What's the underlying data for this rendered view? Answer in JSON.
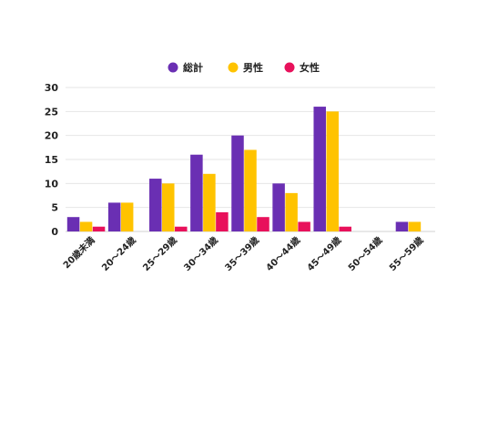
{
  "chart_data": {
    "type": "bar",
    "title": "",
    "xlabel": "",
    "ylabel": "",
    "ylim": [
      0,
      30
    ],
    "yticks": [
      0,
      5,
      10,
      15,
      20,
      25,
      30
    ],
    "grid": true,
    "legend_position": "top-center",
    "categories": [
      "20歳未満",
      "20～24歳",
      "25～29歳",
      "30～34歳",
      "35～39歳",
      "40～44歳",
      "45～49歳",
      "50～54歳",
      "55～59歳"
    ],
    "series": [
      {
        "name": "総計",
        "color": "#6a2fb3",
        "values": [
          3,
          6,
          11,
          16,
          20,
          10,
          26,
          0,
          2
        ]
      },
      {
        "name": "男性",
        "color": "#ffc300",
        "values": [
          2,
          6,
          10,
          12,
          17,
          8,
          25,
          0,
          2
        ]
      },
      {
        "name": "女性",
        "color": "#e8115b",
        "values": [
          1,
          0,
          1,
          4,
          3,
          2,
          1,
          0,
          0
        ]
      }
    ]
  }
}
